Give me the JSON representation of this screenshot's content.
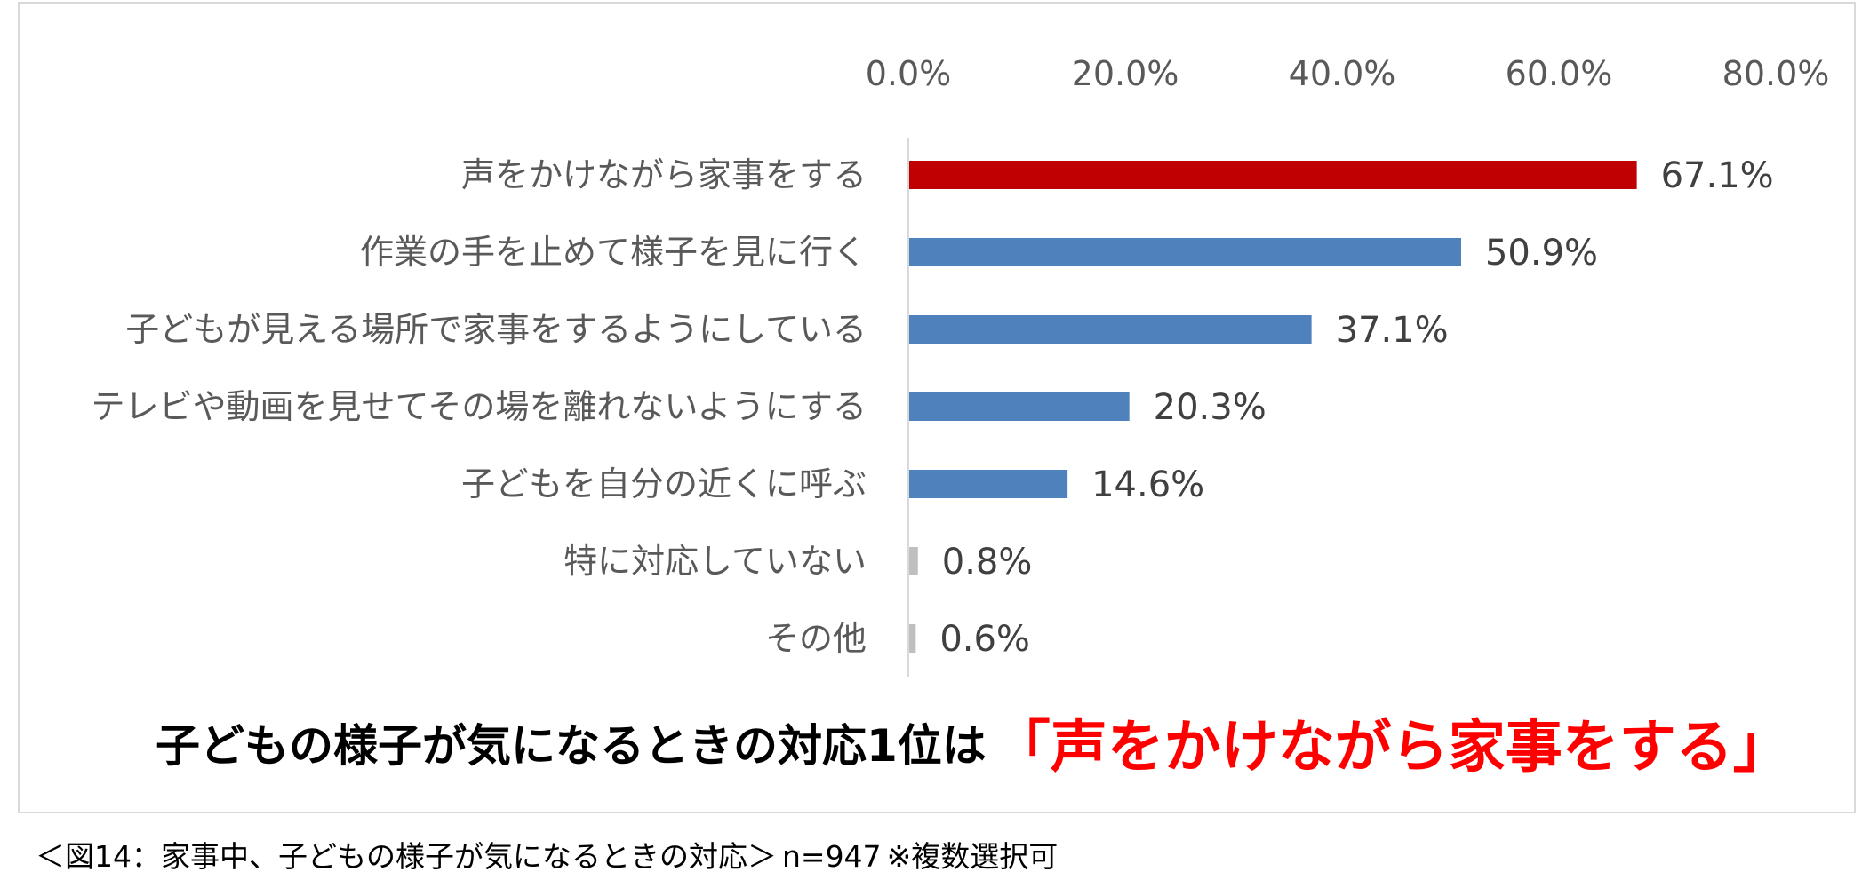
{
  "chart_data": {
    "type": "bar",
    "orientation": "horizontal",
    "categories": [
      "声をかけながら家事をする",
      "作業の手を止めて様子を見に行く",
      "子どもが見える場所で家事をするようにしている",
      "テレビや動画を見せてその場を離れないようにする",
      "子どもを自分の近くに呼ぶ",
      "特に対応していない",
      "その他"
    ],
    "values": [
      67.1,
      50.9,
      37.1,
      20.3,
      14.6,
      0.8,
      0.6
    ],
    "data_labels": [
      "67.1%",
      "50.9%",
      "37.1%",
      "20.3%",
      "14.6%",
      "0.8%",
      "0.6%"
    ],
    "colors": [
      "#c00000",
      "#4f81bd",
      "#4f81bd",
      "#4f81bd",
      "#4f81bd",
      "#bfbfbf",
      "#bfbfbf"
    ],
    "xlim": [
      0,
      80
    ],
    "xticks": [
      0,
      20,
      40,
      60,
      80
    ],
    "xtick_labels": [
      "0.0%",
      "20.0%",
      "40.0%",
      "60.0%",
      "80.0%"
    ],
    "axis_position": "top",
    "grid": false
  },
  "headline": {
    "lead": "子どもの様子が気になるときの対応1位は",
    "highlight": "「声をかけながら家事をする」"
  },
  "caption": {
    "figure": "＜図14：家事中、子どもの様子が気になるときの対応＞",
    "n": "n=947",
    "note": "※複数選択可"
  }
}
